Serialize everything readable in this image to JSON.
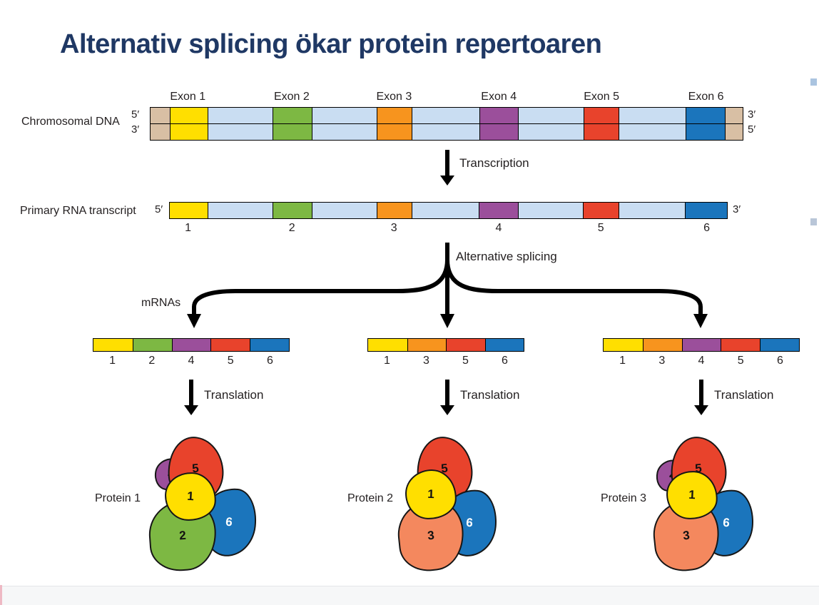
{
  "title": "Alternativ splicing ökar protein repertoaren",
  "colors": {
    "title_text": "#1F3864",
    "intron": "#C9DDF2",
    "dna_end": "#D8BFA4",
    "exon": {
      "1": "#FFDF00",
      "2": "#7DB843",
      "3": "#F7941E",
      "4": "#9B4F9B",
      "5": "#E8432C",
      "6": "#1B75BC"
    },
    "protein_domain": {
      "1": "#FFDF00",
      "2": "#7DB843",
      "3": "#F4885E",
      "4": "#9B4F9B",
      "5": "#E8432C",
      "6": "#1B75BC"
    }
  },
  "chromosomal_dna": {
    "label": "Chromosomal DNA",
    "left_top": "5′",
    "left_bottom": "3′",
    "right_top": "3′",
    "right_bottom": "5′",
    "exon_labels": [
      "Exon 1",
      "Exon 2",
      "Exon 3",
      "Exon 4",
      "Exon 5",
      "Exon 6"
    ],
    "segments": [
      {
        "k": "end",
        "w": 3.2
      },
      {
        "k": "exon",
        "id": "1",
        "w": 6.4
      },
      {
        "k": "intron",
        "w": 11.0
      },
      {
        "k": "exon",
        "id": "2",
        "w": 6.6
      },
      {
        "k": "intron",
        "w": 11.0
      },
      {
        "k": "exon",
        "id": "3",
        "w": 5.9
      },
      {
        "k": "intron",
        "w": 11.4
      },
      {
        "k": "exon",
        "id": "4",
        "w": 6.6
      },
      {
        "k": "intron",
        "w": 11.0
      },
      {
        "k": "exon",
        "id": "5",
        "w": 6.0
      },
      {
        "k": "intron",
        "w": 11.3
      },
      {
        "k": "exon",
        "id": "6",
        "w": 6.6
      },
      {
        "k": "end",
        "w": 3.0
      }
    ]
  },
  "transcription": {
    "label": "Transcription"
  },
  "primary_transcript": {
    "label": "Primary RNA transcript",
    "left": "5′",
    "right": "3′",
    "segments": [
      {
        "k": "exon",
        "id": "1",
        "w": 6.8
      },
      {
        "k": "intron",
        "w": 11.7
      },
      {
        "k": "exon",
        "id": "2",
        "w": 7.0
      },
      {
        "k": "intron",
        "w": 11.6
      },
      {
        "k": "exon",
        "id": "3",
        "w": 6.3
      },
      {
        "k": "intron",
        "w": 12.1
      },
      {
        "k": "exon",
        "id": "4",
        "w": 7.0
      },
      {
        "k": "intron",
        "w": 11.6
      },
      {
        "k": "exon",
        "id": "5",
        "w": 6.4
      },
      {
        "k": "intron",
        "w": 12.0
      },
      {
        "k": "exon",
        "id": "6",
        "w": 7.5
      }
    ]
  },
  "alternative_splicing": {
    "label": "Alternative splicing"
  },
  "mrnas_label": "mRNAs",
  "mrnas": [
    {
      "segments": [
        {
          "k": "exon",
          "id": "1"
        },
        {
          "k": "exon",
          "id": "2"
        },
        {
          "k": "exon",
          "id": "4"
        },
        {
          "k": "exon",
          "id": "5"
        },
        {
          "k": "exon",
          "id": "6"
        }
      ]
    },
    {
      "segments": [
        {
          "k": "exon",
          "id": "1"
        },
        {
          "k": "exon",
          "id": "3"
        },
        {
          "k": "exon",
          "id": "5"
        },
        {
          "k": "exon",
          "id": "6"
        }
      ]
    },
    {
      "segments": [
        {
          "k": "exon",
          "id": "1"
        },
        {
          "k": "exon",
          "id": "3"
        },
        {
          "k": "exon",
          "id": "4"
        },
        {
          "k": "exon",
          "id": "5"
        },
        {
          "k": "exon",
          "id": "6"
        }
      ]
    }
  ],
  "translation_label": "Translation",
  "proteins": [
    {
      "label": "Protein 1",
      "domains": [
        "4",
        "5",
        "1",
        "2",
        "6"
      ]
    },
    {
      "label": "Protein 2",
      "domains": [
        "5",
        "1",
        "3",
        "6"
      ]
    },
    {
      "label": "Protein 3",
      "domains": [
        "4",
        "5",
        "1",
        "3",
        "6"
      ]
    }
  ]
}
